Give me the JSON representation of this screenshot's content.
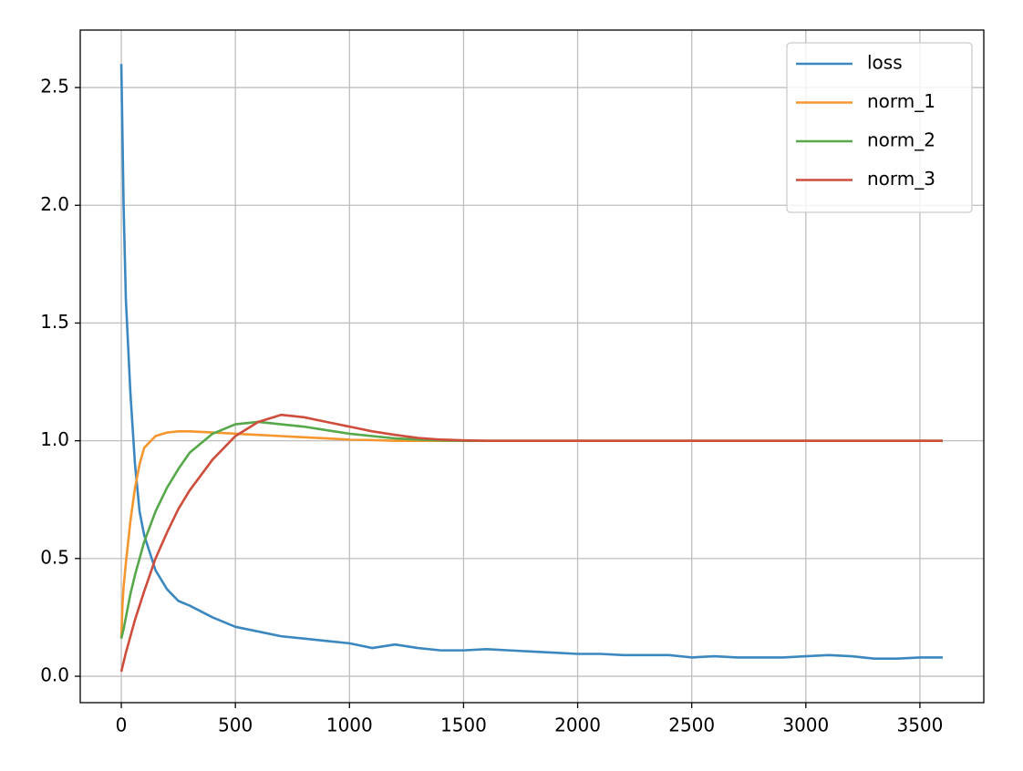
{
  "chart_data": {
    "type": "line",
    "x": [
      0,
      5,
      10,
      20,
      40,
      60,
      80,
      100,
      150,
      200,
      250,
      300,
      400,
      500,
      600,
      700,
      800,
      900,
      1000,
      1100,
      1200,
      1300,
      1400,
      1500,
      1600,
      1700,
      1800,
      1900,
      2000,
      2100,
      2200,
      2300,
      2400,
      2500,
      2600,
      2700,
      2800,
      2900,
      3000,
      3100,
      3200,
      3300,
      3400,
      3500,
      3600
    ],
    "series": [
      {
        "name": "loss",
        "color": "#3b88c0",
        "values": [
          2.6,
          2.3,
          2.0,
          1.6,
          1.2,
          0.9,
          0.7,
          0.6,
          0.45,
          0.37,
          0.32,
          0.3,
          0.25,
          0.21,
          0.19,
          0.17,
          0.16,
          0.15,
          0.14,
          0.12,
          0.135,
          0.12,
          0.11,
          0.11,
          0.115,
          0.11,
          0.105,
          0.1,
          0.095,
          0.095,
          0.09,
          0.09,
          0.09,
          0.08,
          0.085,
          0.08,
          0.08,
          0.08,
          0.085,
          0.09,
          0.085,
          0.075,
          0.075,
          0.08,
          0.08
        ]
      },
      {
        "name": "norm_1",
        "color": "#f5962e",
        "values": [
          0.16,
          0.3,
          0.38,
          0.48,
          0.66,
          0.8,
          0.9,
          0.97,
          1.02,
          1.035,
          1.04,
          1.04,
          1.035,
          1.03,
          1.025,
          1.02,
          1.015,
          1.01,
          1.005,
          1.003,
          1.0,
          1.0,
          1.0,
          1.0,
          1.0,
          1.0,
          1.0,
          1.0,
          1.0,
          1.0,
          1.0,
          1.0,
          1.0,
          1.0,
          1.0,
          1.0,
          1.0,
          1.0,
          1.0,
          1.0,
          1.0,
          1.0,
          1.0,
          1.0,
          1.0
        ]
      },
      {
        "name": "norm_2",
        "color": "#56a84a",
        "values": [
          0.16,
          0.18,
          0.2,
          0.25,
          0.35,
          0.43,
          0.5,
          0.57,
          0.7,
          0.8,
          0.88,
          0.95,
          1.03,
          1.07,
          1.08,
          1.07,
          1.06,
          1.045,
          1.03,
          1.02,
          1.01,
          1.005,
          1.002,
          1.0,
          1.0,
          1.0,
          1.0,
          1.0,
          1.0,
          1.0,
          1.0,
          1.0,
          1.0,
          1.0,
          1.0,
          1.0,
          1.0,
          1.0,
          1.0,
          1.0,
          1.0,
          1.0,
          1.0,
          1.0,
          1.0
        ]
      },
      {
        "name": "norm_3",
        "color": "#cf4d3c",
        "values": [
          0.02,
          0.04,
          0.06,
          0.1,
          0.17,
          0.24,
          0.3,
          0.36,
          0.5,
          0.61,
          0.71,
          0.79,
          0.92,
          1.02,
          1.08,
          1.11,
          1.1,
          1.08,
          1.06,
          1.04,
          1.025,
          1.012,
          1.005,
          1.002,
          1.0,
          1.0,
          1.0,
          1.0,
          1.0,
          1.0,
          1.0,
          1.0,
          1.0,
          1.0,
          1.0,
          1.0,
          1.0,
          1.0,
          1.0,
          1.0,
          1.0,
          1.0,
          1.0,
          1.0,
          1.0
        ]
      }
    ],
    "xlim": [
      -180,
      3780
    ],
    "xticks": [
      0,
      500,
      1000,
      1500,
      2000,
      2500,
      3000,
      3500
    ],
    "ylim": [
      -0.112,
      2.744
    ],
    "yticks": [
      {
        "value": 0,
        "label": "0.0"
      },
      {
        "value": 0.5,
        "label": "0.5"
      },
      {
        "value": 1,
        "label": "1.0"
      },
      {
        "value": 1.5,
        "label": "1.5"
      },
      {
        "value": 2,
        "label": "2.0"
      },
      {
        "value": 2.5,
        "label": "2.5"
      }
    ],
    "grid": true,
    "legend": "upper-right"
  }
}
